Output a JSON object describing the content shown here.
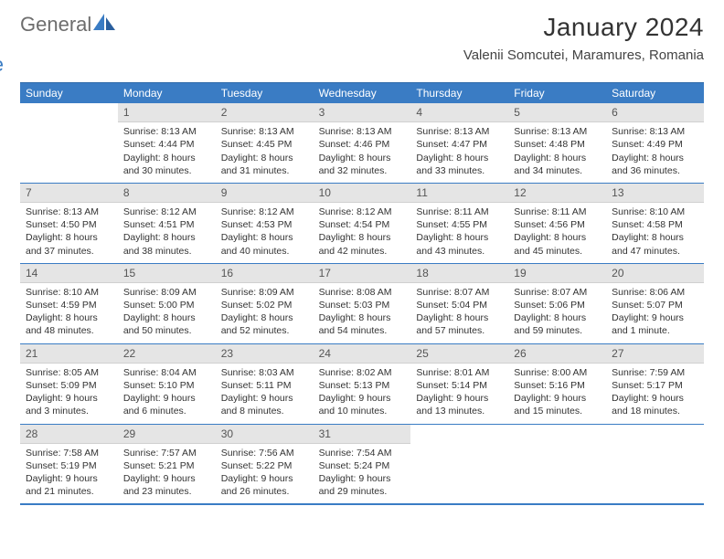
{
  "brand": {
    "part1": "General",
    "part2": "Blue"
  },
  "title": "January 2024",
  "location": "Valenii Somcutei, Maramures, Romania",
  "colors": {
    "header_bg": "#3a7cc4",
    "header_text": "#ffffff",
    "daynum_bg": "#e5e5e5",
    "body_text": "#333333",
    "brand_gray": "#6d6d6d",
    "brand_blue": "#3a7cc4"
  },
  "weekdays": [
    "Sunday",
    "Monday",
    "Tuesday",
    "Wednesday",
    "Thursday",
    "Friday",
    "Saturday"
  ],
  "weeks": [
    [
      {
        "day": "",
        "sunrise": "",
        "sunset": "",
        "daylight1": "",
        "daylight2": ""
      },
      {
        "day": "1",
        "sunrise": "Sunrise: 8:13 AM",
        "sunset": "Sunset: 4:44 PM",
        "daylight1": "Daylight: 8 hours",
        "daylight2": "and 30 minutes."
      },
      {
        "day": "2",
        "sunrise": "Sunrise: 8:13 AM",
        "sunset": "Sunset: 4:45 PM",
        "daylight1": "Daylight: 8 hours",
        "daylight2": "and 31 minutes."
      },
      {
        "day": "3",
        "sunrise": "Sunrise: 8:13 AM",
        "sunset": "Sunset: 4:46 PM",
        "daylight1": "Daylight: 8 hours",
        "daylight2": "and 32 minutes."
      },
      {
        "day": "4",
        "sunrise": "Sunrise: 8:13 AM",
        "sunset": "Sunset: 4:47 PM",
        "daylight1": "Daylight: 8 hours",
        "daylight2": "and 33 minutes."
      },
      {
        "day": "5",
        "sunrise": "Sunrise: 8:13 AM",
        "sunset": "Sunset: 4:48 PM",
        "daylight1": "Daylight: 8 hours",
        "daylight2": "and 34 minutes."
      },
      {
        "day": "6",
        "sunrise": "Sunrise: 8:13 AM",
        "sunset": "Sunset: 4:49 PM",
        "daylight1": "Daylight: 8 hours",
        "daylight2": "and 36 minutes."
      }
    ],
    [
      {
        "day": "7",
        "sunrise": "Sunrise: 8:13 AM",
        "sunset": "Sunset: 4:50 PM",
        "daylight1": "Daylight: 8 hours",
        "daylight2": "and 37 minutes."
      },
      {
        "day": "8",
        "sunrise": "Sunrise: 8:12 AM",
        "sunset": "Sunset: 4:51 PM",
        "daylight1": "Daylight: 8 hours",
        "daylight2": "and 38 minutes."
      },
      {
        "day": "9",
        "sunrise": "Sunrise: 8:12 AM",
        "sunset": "Sunset: 4:53 PM",
        "daylight1": "Daylight: 8 hours",
        "daylight2": "and 40 minutes."
      },
      {
        "day": "10",
        "sunrise": "Sunrise: 8:12 AM",
        "sunset": "Sunset: 4:54 PM",
        "daylight1": "Daylight: 8 hours",
        "daylight2": "and 42 minutes."
      },
      {
        "day": "11",
        "sunrise": "Sunrise: 8:11 AM",
        "sunset": "Sunset: 4:55 PM",
        "daylight1": "Daylight: 8 hours",
        "daylight2": "and 43 minutes."
      },
      {
        "day": "12",
        "sunrise": "Sunrise: 8:11 AM",
        "sunset": "Sunset: 4:56 PM",
        "daylight1": "Daylight: 8 hours",
        "daylight2": "and 45 minutes."
      },
      {
        "day": "13",
        "sunrise": "Sunrise: 8:10 AM",
        "sunset": "Sunset: 4:58 PM",
        "daylight1": "Daylight: 8 hours",
        "daylight2": "and 47 minutes."
      }
    ],
    [
      {
        "day": "14",
        "sunrise": "Sunrise: 8:10 AM",
        "sunset": "Sunset: 4:59 PM",
        "daylight1": "Daylight: 8 hours",
        "daylight2": "and 48 minutes."
      },
      {
        "day": "15",
        "sunrise": "Sunrise: 8:09 AM",
        "sunset": "Sunset: 5:00 PM",
        "daylight1": "Daylight: 8 hours",
        "daylight2": "and 50 minutes."
      },
      {
        "day": "16",
        "sunrise": "Sunrise: 8:09 AM",
        "sunset": "Sunset: 5:02 PM",
        "daylight1": "Daylight: 8 hours",
        "daylight2": "and 52 minutes."
      },
      {
        "day": "17",
        "sunrise": "Sunrise: 8:08 AM",
        "sunset": "Sunset: 5:03 PM",
        "daylight1": "Daylight: 8 hours",
        "daylight2": "and 54 minutes."
      },
      {
        "day": "18",
        "sunrise": "Sunrise: 8:07 AM",
        "sunset": "Sunset: 5:04 PM",
        "daylight1": "Daylight: 8 hours",
        "daylight2": "and 57 minutes."
      },
      {
        "day": "19",
        "sunrise": "Sunrise: 8:07 AM",
        "sunset": "Sunset: 5:06 PM",
        "daylight1": "Daylight: 8 hours",
        "daylight2": "and 59 minutes."
      },
      {
        "day": "20",
        "sunrise": "Sunrise: 8:06 AM",
        "sunset": "Sunset: 5:07 PM",
        "daylight1": "Daylight: 9 hours",
        "daylight2": "and 1 minute."
      }
    ],
    [
      {
        "day": "21",
        "sunrise": "Sunrise: 8:05 AM",
        "sunset": "Sunset: 5:09 PM",
        "daylight1": "Daylight: 9 hours",
        "daylight2": "and 3 minutes."
      },
      {
        "day": "22",
        "sunrise": "Sunrise: 8:04 AM",
        "sunset": "Sunset: 5:10 PM",
        "daylight1": "Daylight: 9 hours",
        "daylight2": "and 6 minutes."
      },
      {
        "day": "23",
        "sunrise": "Sunrise: 8:03 AM",
        "sunset": "Sunset: 5:11 PM",
        "daylight1": "Daylight: 9 hours",
        "daylight2": "and 8 minutes."
      },
      {
        "day": "24",
        "sunrise": "Sunrise: 8:02 AM",
        "sunset": "Sunset: 5:13 PM",
        "daylight1": "Daylight: 9 hours",
        "daylight2": "and 10 minutes."
      },
      {
        "day": "25",
        "sunrise": "Sunrise: 8:01 AM",
        "sunset": "Sunset: 5:14 PM",
        "daylight1": "Daylight: 9 hours",
        "daylight2": "and 13 minutes."
      },
      {
        "day": "26",
        "sunrise": "Sunrise: 8:00 AM",
        "sunset": "Sunset: 5:16 PM",
        "daylight1": "Daylight: 9 hours",
        "daylight2": "and 15 minutes."
      },
      {
        "day": "27",
        "sunrise": "Sunrise: 7:59 AM",
        "sunset": "Sunset: 5:17 PM",
        "daylight1": "Daylight: 9 hours",
        "daylight2": "and 18 minutes."
      }
    ],
    [
      {
        "day": "28",
        "sunrise": "Sunrise: 7:58 AM",
        "sunset": "Sunset: 5:19 PM",
        "daylight1": "Daylight: 9 hours",
        "daylight2": "and 21 minutes."
      },
      {
        "day": "29",
        "sunrise": "Sunrise: 7:57 AM",
        "sunset": "Sunset: 5:21 PM",
        "daylight1": "Daylight: 9 hours",
        "daylight2": "and 23 minutes."
      },
      {
        "day": "30",
        "sunrise": "Sunrise: 7:56 AM",
        "sunset": "Sunset: 5:22 PM",
        "daylight1": "Daylight: 9 hours",
        "daylight2": "and 26 minutes."
      },
      {
        "day": "31",
        "sunrise": "Sunrise: 7:54 AM",
        "sunset": "Sunset: 5:24 PM",
        "daylight1": "Daylight: 9 hours",
        "daylight2": "and 29 minutes."
      },
      {
        "day": "",
        "sunrise": "",
        "sunset": "",
        "daylight1": "",
        "daylight2": ""
      },
      {
        "day": "",
        "sunrise": "",
        "sunset": "",
        "daylight1": "",
        "daylight2": ""
      },
      {
        "day": "",
        "sunrise": "",
        "sunset": "",
        "daylight1": "",
        "daylight2": ""
      }
    ]
  ]
}
